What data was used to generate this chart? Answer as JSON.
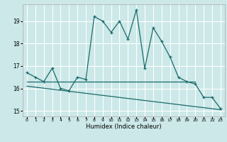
{
  "xlabel": "Humidex (Indice chaleur)",
  "bg_color": "#cce8e8",
  "grid_color": "#ffffff",
  "line_color": "#1a6b6b",
  "xlim": [
    -0.5,
    23.5
  ],
  "ylim": [
    14.75,
    19.75
  ],
  "xticks": [
    0,
    1,
    2,
    3,
    4,
    5,
    6,
    7,
    8,
    9,
    10,
    11,
    12,
    13,
    14,
    15,
    16,
    17,
    18,
    19,
    20,
    21,
    22,
    23
  ],
  "yticks": [
    15,
    16,
    17,
    18,
    19
  ],
  "series1_x": [
    0,
    1,
    2,
    3,
    4,
    5,
    6,
    7,
    8,
    9,
    10,
    11,
    12,
    13,
    14,
    15,
    16,
    17,
    18,
    19,
    20,
    21,
    22,
    23
  ],
  "series1_y": [
    16.7,
    16.5,
    16.3,
    16.9,
    16.0,
    15.9,
    16.5,
    16.4,
    19.2,
    19.0,
    18.5,
    19.0,
    18.2,
    19.5,
    16.9,
    18.7,
    18.1,
    17.4,
    16.5,
    16.3,
    16.2,
    15.6,
    15.6,
    15.1
  ],
  "series2_x": [
    0,
    20
  ],
  "series2_y": [
    16.3,
    16.3
  ],
  "series3_x": [
    0,
    23
  ],
  "series3_y": [
    16.1,
    15.05
  ]
}
